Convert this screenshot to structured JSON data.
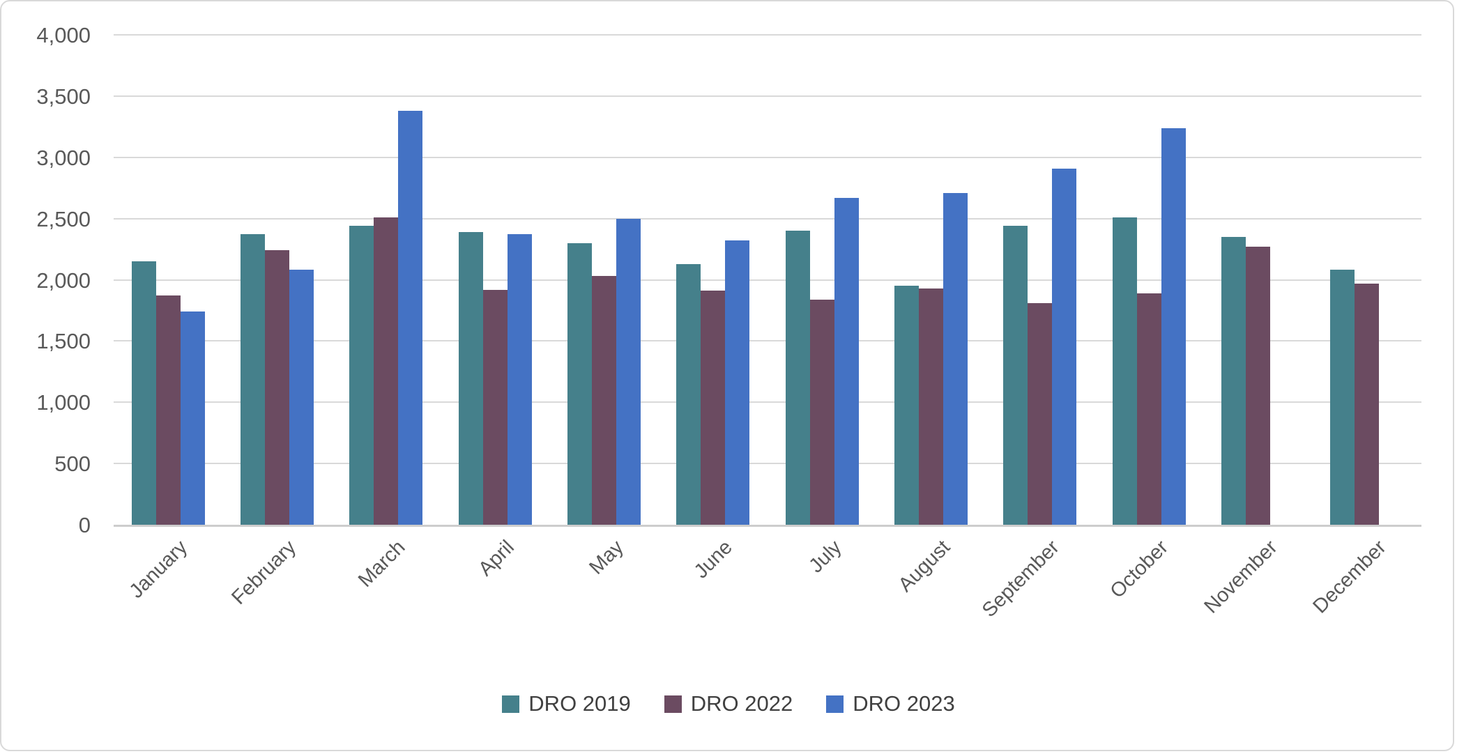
{
  "chart_data": {
    "type": "bar",
    "title": "",
    "xlabel": "",
    "ylabel": "",
    "categories": [
      "January",
      "February",
      "March",
      "April",
      "May",
      "June",
      "July",
      "August",
      "September",
      "October",
      "November",
      "December"
    ],
    "series": [
      {
        "name": "DRO 2019",
        "color": "#45808B",
        "values": [
          2150,
          2370,
          2440,
          2390,
          2300,
          2130,
          2400,
          1950,
          2440,
          2510,
          2350,
          2080
        ]
      },
      {
        "name": "DRO 2022",
        "color": "#6B4B61",
        "values": [
          1870,
          2240,
          2510,
          1920,
          2030,
          1910,
          1840,
          1930,
          1810,
          1890,
          2270,
          1970
        ]
      },
      {
        "name": "DRO 2023",
        "color": "#4472C4",
        "values": [
          1740,
          2080,
          3380,
          2370,
          2500,
          2320,
          2670,
          2710,
          2910,
          3240,
          null,
          null
        ]
      }
    ],
    "ylim": [
      0,
      4000
    ],
    "ytick_step": 500,
    "ytick_labels": [
      "0",
      "500",
      "1,000",
      "1,500",
      "2,000",
      "2,500",
      "3,000",
      "3,500",
      "4,000"
    ],
    "grid": "horizontal",
    "gridline_color": "#D9D9D9",
    "axis_line_color": "#CDCDCD",
    "tick_text_color": "#595959",
    "legend_text_color": "#404040",
    "legend_position": "bottom-center",
    "legend": [
      "DRO 2019",
      "DRO 2022",
      "DRO 2023"
    ],
    "x_label_rotation_deg": 45
  }
}
